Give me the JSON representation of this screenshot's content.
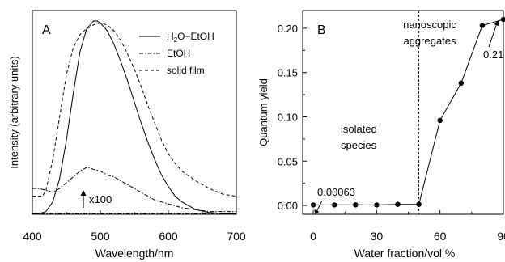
{
  "chart_data": [
    {
      "panel": "A",
      "type": "line",
      "xlabel": "Wavelength/nm",
      "ylabel": "Intensity (arbitrary units)",
      "xlim": [
        400,
        700
      ],
      "xticks": [
        400,
        500,
        600,
        700
      ],
      "yticks_shown": false,
      "legend": {
        "placement": "top-right"
      },
      "annotation": "x100",
      "series": [
        {
          "name": "H2O-EtOH",
          "style": "solid",
          "x": [
            400,
            410,
            420,
            430,
            440,
            450,
            460,
            470,
            480,
            490,
            495,
            500,
            510,
            520,
            530,
            540,
            550,
            560,
            570,
            580,
            590,
            600,
            610,
            620,
            640,
            660,
            680,
            700
          ],
          "y": [
            0,
            0,
            0.01,
            0.06,
            0.18,
            0.38,
            0.62,
            0.84,
            0.96,
            1.0,
            1.0,
            0.99,
            0.95,
            0.88,
            0.79,
            0.69,
            0.58,
            0.47,
            0.37,
            0.28,
            0.2,
            0.14,
            0.09,
            0.06,
            0.02,
            0.005,
            0,
            0
          ]
        },
        {
          "name": "EtOH",
          "style": "dash-dot",
          "x": [
            400,
            410,
            420,
            430,
            440,
            450,
            460,
            470,
            480,
            490,
            500,
            510,
            520,
            530,
            540,
            550,
            560,
            570,
            580,
            590,
            600,
            620,
            640,
            660,
            680,
            700
          ],
          "y": [
            0.13,
            0.13,
            0.12,
            0.11,
            0.13,
            0.16,
            0.19,
            0.22,
            0.24,
            0.23,
            0.22,
            0.2,
            0.19,
            0.17,
            0.15,
            0.13,
            0.11,
            0.09,
            0.07,
            0.06,
            0.05,
            0.03,
            0.02,
            0.01,
            0.01,
            0.01
          ]
        },
        {
          "name": "solid film",
          "style": "dashed",
          "x": [
            400,
            405,
            410,
            415,
            420,
            430,
            440,
            450,
            460,
            470,
            480,
            490,
            500,
            510,
            520,
            530,
            540,
            550,
            560,
            570,
            580,
            590,
            600,
            610,
            620,
            640,
            660,
            680,
            700
          ],
          "y": [
            0.09,
            0.09,
            0.09,
            0.09,
            0.12,
            0.28,
            0.5,
            0.72,
            0.86,
            0.93,
            0.96,
            0.98,
            0.99,
            0.98,
            0.95,
            0.9,
            0.83,
            0.75,
            0.66,
            0.56,
            0.47,
            0.38,
            0.31,
            0.26,
            0.22,
            0.17,
            0.13,
            0.1,
            0.09
          ]
        },
        {
          "name": "baseline",
          "style": "dash-dot",
          "x": [
            400,
            700
          ],
          "y": [
            0,
            0
          ]
        }
      ]
    },
    {
      "panel": "B",
      "type": "line",
      "xlabel": "Water fraction/vol %",
      "ylabel": "Quantum yield",
      "xlim": [
        -5,
        90
      ],
      "ylim": [
        -0.01,
        0.22
      ],
      "xticks": [
        0,
        30,
        60,
        90
      ],
      "yticks": [
        0.0,
        0.05,
        0.1,
        0.15,
        0.2
      ],
      "ytick_labels": [
        "0.00",
        "0.05",
        "0.10",
        "0.15",
        "0.20"
      ],
      "series": [
        {
          "x": [
            0,
            10,
            20,
            30,
            40,
            50,
            60,
            70,
            80,
            90
          ],
          "y": [
            0.00063,
            0.0006,
            0.0007,
            0.0005,
            0.0012,
            0.0012,
            0.096,
            0.138,
            0.203,
            0.21
          ]
        }
      ],
      "vertical_line_x": 50,
      "annotations": {
        "low_value": "0.00063",
        "high_value": "0.21",
        "region_left": [
          "isolated",
          "species"
        ],
        "region_right": [
          "nanoscopic",
          "aggregates"
        ]
      }
    }
  ]
}
